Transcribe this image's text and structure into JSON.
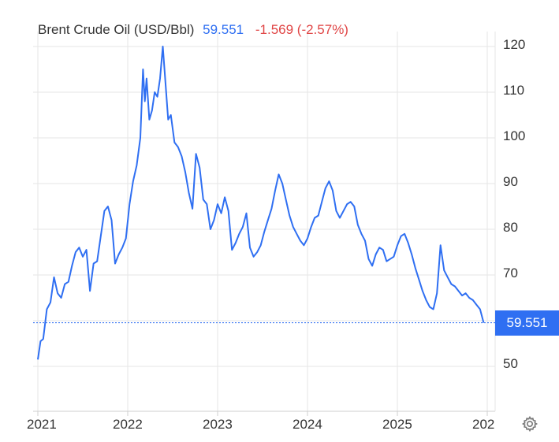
{
  "header": {
    "name": "Brent Crude Oil (USD/Bbl)",
    "price": "59.551",
    "change": "-1.569 (-2.57%)"
  },
  "price_tag": "59.551",
  "icons": {
    "settings": "gear-icon"
  },
  "colors": {
    "line": "#2f6ff2",
    "negative": "#e04646",
    "grid": "#e6e6e6"
  },
  "chart_data": {
    "type": "line",
    "title": "Brent Crude Oil (USD/Bbl)",
    "xlabel": "",
    "ylabel": "",
    "x_ticks": [
      "2021",
      "2022",
      "2023",
      "2024",
      "2025",
      "202"
    ],
    "y_ticks": [
      "120",
      "110",
      "100",
      "90",
      "80",
      "70",
      "50"
    ],
    "ylim": [
      40,
      124
    ],
    "xlim": [
      2021.0,
      2026.0
    ],
    "grid": true,
    "last_value": 59.551,
    "series": [
      {
        "x": [
          2021.0,
          2021.03,
          2021.06,
          2021.1,
          2021.14,
          2021.18,
          2021.22,
          2021.26,
          2021.3,
          2021.34,
          2021.38,
          2021.42,
          2021.46,
          2021.5,
          2021.54,
          2021.58,
          2021.62,
          2021.66,
          2021.7,
          2021.74,
          2021.78,
          2021.82,
          2021.86,
          2021.9,
          2021.94,
          2021.98,
          2022.02,
          2022.06,
          2022.1,
          2022.14,
          2022.17,
          2022.19,
          2022.21,
          2022.24,
          2022.27,
          2022.3,
          2022.33,
          2022.36,
          2022.39,
          2022.42,
          2022.45,
          2022.48,
          2022.52,
          2022.56,
          2022.6,
          2022.64,
          2022.68,
          2022.72,
          2022.76,
          2022.8,
          2022.84,
          2022.88,
          2022.92,
          2022.96,
          2023.0,
          2023.04,
          2023.08,
          2023.12,
          2023.16,
          2023.2,
          2023.24,
          2023.28,
          2023.32,
          2023.36,
          2023.4,
          2023.44,
          2023.48,
          2023.52,
          2023.56,
          2023.6,
          2023.64,
          2023.68,
          2023.72,
          2023.76,
          2023.8,
          2023.84,
          2023.88,
          2023.92,
          2023.96,
          2024.0,
          2024.04,
          2024.08,
          2024.12,
          2024.16,
          2024.2,
          2024.24,
          2024.28,
          2024.32,
          2024.36,
          2024.4,
          2024.44,
          2024.48,
          2024.52,
          2024.56,
          2024.6,
          2024.64,
          2024.68,
          2024.72,
          2024.76,
          2024.8,
          2024.84,
          2024.88,
          2024.92,
          2024.96,
          2025.0,
          2025.04,
          2025.08,
          2025.12,
          2025.16,
          2025.2,
          2025.24,
          2025.28,
          2025.32,
          2025.36,
          2025.4,
          2025.44,
          2025.48,
          2025.52,
          2025.56,
          2025.6,
          2025.64,
          2025.68,
          2025.72,
          2025.76,
          2025.8,
          2025.84,
          2025.88,
          2025.92,
          2025.96
        ],
        "values": [
          51.5,
          55.5,
          56.0,
          62.5,
          64.0,
          69.5,
          66.0,
          65.0,
          68.0,
          68.5,
          72.0,
          75.0,
          76.0,
          74.0,
          75.5,
          66.5,
          72.5,
          73.0,
          78.5,
          84.0,
          85.0,
          82.0,
          72.5,
          74.5,
          76.0,
          78.0,
          85.5,
          90.5,
          94.0,
          100.0,
          115.0,
          108.0,
          113.0,
          104.0,
          106.0,
          110.0,
          109.0,
          113.0,
          120.0,
          112.0,
          104.0,
          105.0,
          99.0,
          98.0,
          96.0,
          92.5,
          88.0,
          84.5,
          96.5,
          93.5,
          86.5,
          85.5,
          80.0,
          82.0,
          85.5,
          83.5,
          87.0,
          84.0,
          75.5,
          77.0,
          79.0,
          80.5,
          83.5,
          76.0,
          74.0,
          75.0,
          76.5,
          79.5,
          82.0,
          84.5,
          88.5,
          92.0,
          90.0,
          86.5,
          83.0,
          80.5,
          79.0,
          77.5,
          76.5,
          78.0,
          80.5,
          82.5,
          83.0,
          86.0,
          89.0,
          90.5,
          88.5,
          84.0,
          82.5,
          84.0,
          85.5,
          86.0,
          85.0,
          81.0,
          79.0,
          77.5,
          73.5,
          72.0,
          74.5,
          76.0,
          75.5,
          73.0,
          73.5,
          74.0,
          76.5,
          78.5,
          79.0,
          77.0,
          74.5,
          71.5,
          69.0,
          66.5,
          64.5,
          63.0,
          62.5,
          66.0,
          76.5,
          71.0,
          69.5,
          68.0,
          67.5,
          66.5,
          65.5,
          66.0,
          65.0,
          64.5,
          63.5,
          62.5,
          59.551
        ]
      }
    ]
  }
}
